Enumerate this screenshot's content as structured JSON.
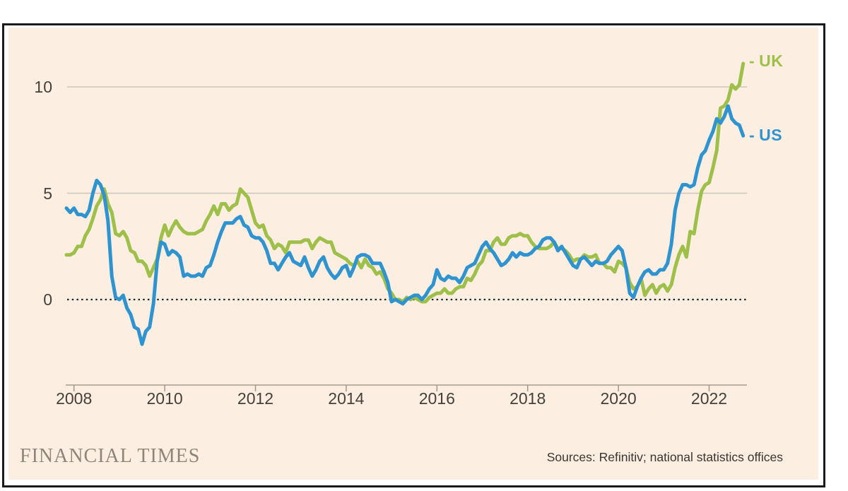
{
  "branding": {
    "logo": "FINANCIAL TIMES"
  },
  "footer": {
    "sources": "Sources: Refinitiv; national statistics offices"
  },
  "colors": {
    "background": "#fcefe2",
    "frame": "#1a1a1a",
    "uk": "#9ec04a",
    "us": "#2f93cf",
    "grid": "#cdc5ba",
    "axis": "#a59c90",
    "zero_line": "#262626",
    "tick_text": "#46403a",
    "logo_text": "#8e857a"
  },
  "chart_data": {
    "type": "line",
    "title": "",
    "ylabel": "",
    "xlabel": "",
    "frequency": "monthly",
    "start": "2007-11",
    "end": "2022-10",
    "ylim": [
      -3,
      11.5
    ],
    "y_ticks": [
      10,
      5,
      0
    ],
    "x_tick_years": [
      2008,
      2010,
      2012,
      2014,
      2016,
      2018,
      2020,
      2022
    ],
    "grid": "horizontal, zero line dotted",
    "legend_position": "line-end labels, right side",
    "legend": [
      {
        "dash": "-",
        "label": "UK"
      },
      {
        "dash": "-",
        "label": "US"
      }
    ],
    "series": [
      {
        "name": "UK",
        "color_key": "uk",
        "values": [
          2.1,
          2.1,
          2.2,
          2.5,
          2.5,
          3.0,
          3.3,
          3.8,
          4.4,
          4.7,
          5.2,
          4.5,
          4.1,
          3.1,
          3.0,
          3.2,
          2.9,
          2.3,
          2.2,
          1.8,
          1.8,
          1.6,
          1.1,
          1.5,
          1.9,
          2.9,
          3.5,
          3.0,
          3.4,
          3.7,
          3.4,
          3.2,
          3.1,
          3.1,
          3.1,
          3.2,
          3.3,
          3.7,
          4.0,
          4.4,
          4.0,
          4.5,
          4.5,
          4.2,
          4.4,
          4.5,
          5.2,
          5.0,
          4.8,
          4.2,
          3.6,
          3.4,
          3.5,
          3.0,
          2.8,
          2.4,
          2.6,
          2.5,
          2.2,
          2.7,
          2.7,
          2.7,
          2.7,
          2.8,
          2.8,
          2.4,
          2.7,
          2.9,
          2.8,
          2.7,
          2.7,
          2.2,
          2.1,
          2.0,
          1.9,
          1.7,
          1.6,
          1.8,
          1.5,
          1.9,
          1.6,
          1.5,
          1.2,
          1.3,
          1.0,
          0.5,
          0.3,
          0.0,
          0.0,
          -0.1,
          0.1,
          0.0,
          0.1,
          0.0,
          -0.1,
          -0.1,
          0.1,
          0.2,
          0.3,
          0.3,
          0.5,
          0.3,
          0.3,
          0.5,
          0.6,
          0.6,
          1.0,
          0.9,
          1.2,
          1.6,
          1.8,
          2.3,
          2.3,
          2.7,
          2.9,
          2.6,
          2.6,
          2.9,
          3.0,
          3.0,
          3.1,
          3.0,
          3.0,
          2.7,
          2.5,
          2.4,
          2.4,
          2.4,
          2.5,
          2.7,
          2.4,
          2.4,
          2.3,
          2.1,
          1.8,
          1.9,
          1.9,
          2.1,
          2.0,
          2.0,
          2.1,
          1.7,
          1.7,
          1.5,
          1.5,
          1.3,
          1.8,
          1.7,
          1.5,
          0.8,
          0.5,
          0.6,
          1.0,
          0.2,
          0.5,
          0.7,
          0.3,
          0.6,
          0.7,
          0.4,
          0.7,
          1.5,
          2.1,
          2.5,
          2.0,
          3.2,
          3.1,
          4.2,
          5.1,
          5.4,
          5.5,
          6.2,
          7.0,
          9.0,
          9.1,
          9.4,
          10.1,
          9.9,
          10.1,
          11.1
        ]
      },
      {
        "name": "US",
        "color_key": "us",
        "values": [
          4.3,
          4.1,
          4.3,
          4.0,
          4.0,
          3.9,
          4.2,
          5.0,
          5.6,
          5.4,
          4.9,
          3.7,
          1.1,
          0.1,
          0.0,
          0.2,
          -0.4,
          -0.7,
          -1.3,
          -1.4,
          -2.1,
          -1.5,
          -1.3,
          -0.2,
          1.8,
          2.7,
          2.6,
          2.1,
          2.3,
          2.2,
          2.0,
          1.1,
          1.2,
          1.1,
          1.1,
          1.2,
          1.1,
          1.5,
          1.6,
          2.1,
          2.7,
          3.2,
          3.6,
          3.6,
          3.6,
          3.8,
          3.9,
          3.5,
          3.4,
          3.0,
          2.9,
          2.9,
          2.7,
          2.3,
          1.7,
          1.7,
          1.4,
          1.7,
          2.0,
          2.2,
          1.8,
          1.7,
          1.6,
          2.0,
          1.5,
          1.1,
          1.4,
          1.8,
          2.0,
          1.5,
          1.2,
          1.0,
          1.2,
          1.5,
          1.6,
          1.1,
          1.5,
          2.0,
          2.1,
          2.1,
          2.0,
          1.7,
          1.7,
          1.7,
          1.3,
          0.8,
          -0.1,
          0.0,
          -0.1,
          -0.2,
          0.0,
          0.1,
          0.2,
          0.2,
          0.0,
          0.2,
          0.5,
          0.7,
          1.4,
          1.0,
          0.9,
          1.1,
          1.0,
          1.0,
          0.8,
          1.1,
          1.5,
          1.6,
          1.7,
          2.1,
          2.5,
          2.7,
          2.4,
          2.2,
          1.9,
          1.6,
          1.7,
          1.9,
          2.2,
          2.0,
          2.2,
          2.1,
          2.1,
          2.2,
          2.4,
          2.5,
          2.8,
          2.9,
          2.9,
          2.7,
          2.3,
          2.5,
          2.2,
          1.9,
          1.6,
          1.5,
          1.9,
          2.0,
          1.8,
          1.6,
          1.8,
          1.7,
          1.7,
          1.8,
          2.1,
          2.3,
          2.5,
          2.3,
          1.5,
          0.3,
          0.1,
          0.6,
          1.0,
          1.3,
          1.4,
          1.2,
          1.2,
          1.4,
          1.4,
          1.7,
          2.6,
          4.2,
          5.0,
          5.4,
          5.4,
          5.3,
          5.4,
          6.2,
          6.8,
          7.0,
          7.5,
          7.9,
          8.5,
          8.3,
          8.6,
          9.1,
          8.5,
          8.3,
          8.2,
          7.7
        ]
      }
    ]
  }
}
